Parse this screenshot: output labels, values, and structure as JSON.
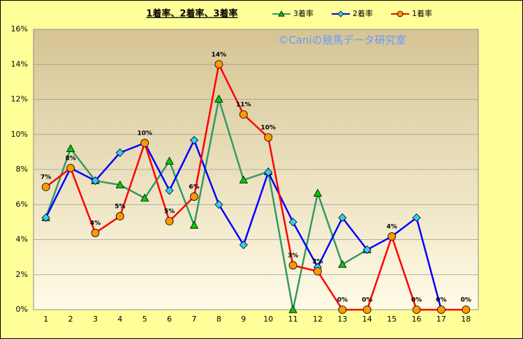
{
  "chart_data": {
    "type": "line",
    "title": "1着率、2着率、3着率",
    "annotation": "©Caniの競馬データ研究室",
    "categories": [
      "1",
      "2",
      "3",
      "4",
      "5",
      "6",
      "7",
      "8",
      "9",
      "10",
      "11",
      "12",
      "13",
      "14",
      "15",
      "16",
      "17",
      "18"
    ],
    "series": [
      {
        "name": "3着率",
        "color": "#339966",
        "marker": "triangle",
        "marker_color": "#00cc00",
        "values": [
          5.25,
          9.19,
          7.36,
          7.12,
          6.37,
          8.48,
          4.82,
          12.02,
          7.4,
          7.88,
          0,
          6.65,
          2.59,
          3.42,
          null,
          null,
          null,
          null
        ]
      },
      {
        "name": "2着率",
        "color": "#0000ff",
        "marker": "diamond",
        "marker_color": "#33ccff",
        "values": [
          5.25,
          8.08,
          7.36,
          8.96,
          9.51,
          6.8,
          9.67,
          6.0,
          3.7,
          7.84,
          5.0,
          2.43,
          5.25,
          3.42,
          4.18,
          5.25,
          0,
          null
        ]
      },
      {
        "name": "1着率",
        "color": "#ff0000",
        "marker": "circle",
        "marker_color": "#ff9900",
        "values": [
          7.0,
          8.08,
          4.38,
          5.33,
          9.51,
          5.05,
          6.45,
          14.0,
          11.14,
          9.83,
          2.53,
          2.19,
          0,
          0,
          4.18,
          0,
          0,
          0
        ],
        "value_labels": [
          "7%",
          "8%",
          "4%",
          "5%",
          "10%",
          "5%",
          "6%",
          "14%",
          "11%",
          "10%",
          "3%",
          "2%",
          "0%",
          "0%",
          "4%",
          "0%",
          "0%",
          "0%"
        ]
      }
    ],
    "ylim": [
      0,
      16
    ],
    "yticks": [
      {
        "value": 0,
        "label": "0%"
      },
      {
        "value": 2,
        "label": "2%"
      },
      {
        "value": 4,
        "label": "4%"
      },
      {
        "value": 6,
        "label": "6%"
      },
      {
        "value": 8,
        "label": "8%"
      },
      {
        "value": 10,
        "label": "10%"
      },
      {
        "value": 12,
        "label": "12%"
      },
      {
        "value": 14,
        "label": "14%"
      },
      {
        "value": 16,
        "label": "16%"
      }
    ],
    "grid": true,
    "legend": "top"
  }
}
